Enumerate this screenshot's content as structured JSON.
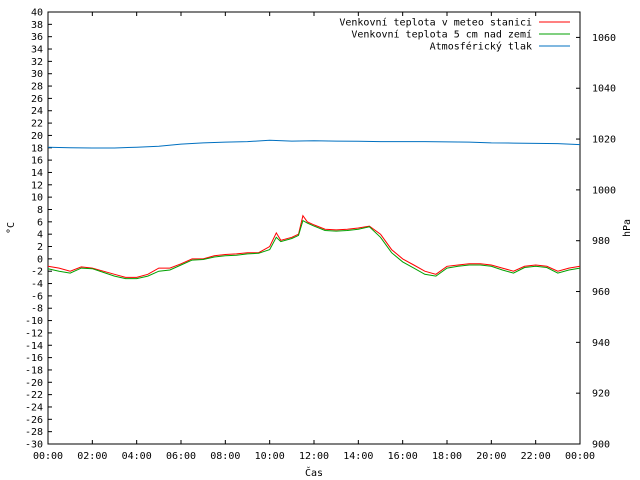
{
  "chart_data": {
    "type": "line",
    "xlabel": "Čas",
    "ylabel": "°C",
    "y2label": "hPa",
    "xlim": [
      0,
      24
    ],
    "ylim": [
      -30,
      40
    ],
    "y2lim": [
      900,
      1070
    ],
    "grid": false,
    "legend_position": "top-right",
    "x_ticks": [
      "00:00",
      "02:00",
      "04:00",
      "06:00",
      "08:00",
      "10:00",
      "12:00",
      "14:00",
      "16:00",
      "18:00",
      "20:00",
      "22:00",
      "00:00"
    ],
    "y_ticks": [
      40,
      38,
      36,
      34,
      32,
      30,
      28,
      26,
      24,
      22,
      20,
      18,
      16,
      14,
      12,
      10,
      8,
      6,
      4,
      2,
      0,
      -2,
      -4,
      -6,
      -8,
      -10,
      -12,
      -14,
      -16,
      -18,
      -20,
      -22,
      -24,
      -26,
      -28,
      -30
    ],
    "y2_ticks": [
      1060,
      1040,
      1020,
      1000,
      980,
      960,
      940,
      920,
      900
    ],
    "series": [
      {
        "name": "Venkovní teplota v meteo stanici",
        "axis": "left",
        "color": "#ff0000",
        "x": [
          0,
          0.5,
          1,
          1.5,
          2,
          2.5,
          3,
          3.5,
          4,
          4.5,
          5,
          5.5,
          6,
          6.5,
          7,
          7.5,
          8,
          8.5,
          9,
          9.5,
          10,
          10.3,
          10.5,
          11,
          11.3,
          11.5,
          11.7,
          12,
          12.5,
          13,
          13.5,
          14,
          14.5,
          15,
          15.5,
          16,
          16.5,
          17,
          17.5,
          18,
          18.5,
          19,
          19.5,
          20,
          20.5,
          21,
          21.5,
          22,
          22.5,
          23,
          23.5,
          24
        ],
        "y": [
          -1.2,
          -1.5,
          -2,
          -1.3,
          -1.5,
          -2,
          -2.5,
          -3,
          -3,
          -2.5,
          -1.5,
          -1.5,
          -0.8,
          0,
          0,
          0.5,
          0.7,
          0.8,
          1,
          1,
          2,
          4.2,
          3,
          3.5,
          4,
          7,
          6,
          5.5,
          4.8,
          4.7,
          4.8,
          5,
          5.3,
          4,
          1.5,
          0,
          -1,
          -2,
          -2.5,
          -1.2,
          -1,
          -0.8,
          -0.8,
          -1,
          -1.5,
          -2,
          -1.2,
          -1,
          -1.2,
          -2,
          -1.5,
          -1.2
        ]
      },
      {
        "name": "Venkovní teplota 5 cm nad zemí",
        "axis": "left",
        "color": "#00a000",
        "x": [
          0,
          0.5,
          1,
          1.5,
          2,
          2.5,
          3,
          3.5,
          4,
          4.5,
          5,
          5.5,
          6,
          6.5,
          7,
          7.5,
          8,
          8.5,
          9,
          9.5,
          10,
          10.3,
          10.5,
          11,
          11.3,
          11.5,
          11.7,
          12,
          12.5,
          13,
          13.5,
          14,
          14.5,
          15,
          15.5,
          16,
          16.5,
          17,
          17.5,
          18,
          18.5,
          19,
          19.5,
          20,
          20.5,
          21,
          21.5,
          22,
          22.5,
          23,
          23.5,
          24
        ],
        "y": [
          -1.6,
          -2,
          -2.3,
          -1.5,
          -1.6,
          -2.2,
          -2.8,
          -3.2,
          -3.2,
          -2.8,
          -2,
          -1.8,
          -1,
          -0.2,
          -0.1,
          0.3,
          0.5,
          0.6,
          0.8,
          0.9,
          1.5,
          3.5,
          2.8,
          3.3,
          3.8,
          6.2,
          5.8,
          5.3,
          4.6,
          4.5,
          4.6,
          4.8,
          5.2,
          3.5,
          1,
          -0.5,
          -1.5,
          -2.5,
          -2.8,
          -1.5,
          -1.2,
          -1,
          -1,
          -1.2,
          -1.8,
          -2.3,
          -1.4,
          -1.2,
          -1.4,
          -2.3,
          -1.8,
          -1.5
        ]
      },
      {
        "name": "Atmosférický tlak",
        "axis": "right",
        "color": "#0070c0",
        "x": [
          0,
          1,
          2,
          3,
          4,
          5,
          6,
          7,
          8,
          9,
          10,
          11,
          12,
          13,
          14,
          15,
          16,
          17,
          18,
          19,
          20,
          21,
          22,
          23,
          24
        ],
        "y": [
          1016.8,
          1016.6,
          1016.5,
          1016.5,
          1016.8,
          1017.2,
          1018,
          1018.5,
          1018.8,
          1019,
          1019.5,
          1019.2,
          1019.3,
          1019.2,
          1019.1,
          1019,
          1019,
          1019,
          1018.9,
          1018.8,
          1018.5,
          1018.4,
          1018.3,
          1018.2,
          1017.8
        ]
      }
    ]
  }
}
